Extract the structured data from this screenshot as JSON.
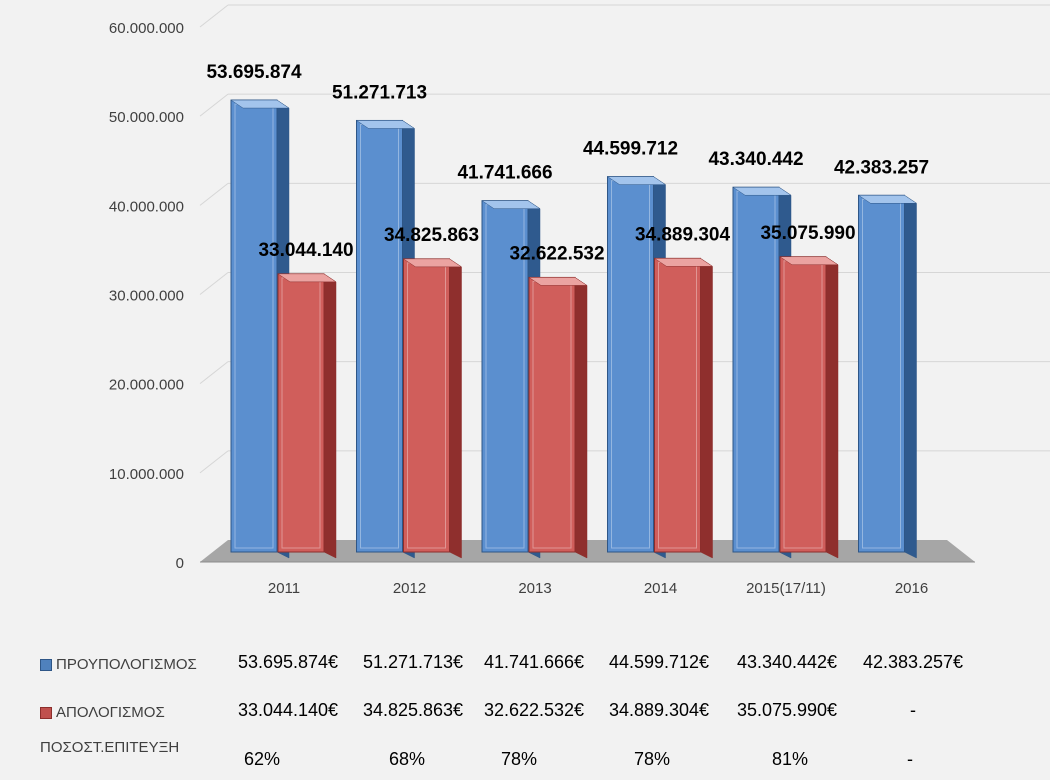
{
  "chart_data": {
    "type": "bar",
    "categories": [
      "2011",
      "2012",
      "2013",
      "2014",
      "2015(17/11)",
      "2016"
    ],
    "series": [
      {
        "name": "ΠΡΟΥΠΟΛΟΓΙΣΜΟΣ",
        "color": "#4f81bd",
        "values": [
          53695874,
          51271713,
          41741666,
          44599712,
          43340442,
          42383257
        ],
        "labels": [
          "53.695.874",
          "51.271.713",
          "41.741.666",
          "44.599.712",
          "43.340.442",
          "42.383.257"
        ]
      },
      {
        "name": "ΑΠΟΛΟΓΙΣΜΟΣ",
        "color": "#c0504d",
        "values": [
          33044140,
          34825863,
          32622532,
          34889304,
          35075990,
          null
        ],
        "labels": [
          "33.044.140",
          "34.825.863",
          "32.622.532",
          "34.889.304",
          "35.075.990",
          null
        ]
      }
    ],
    "yticks": [
      "0",
      "10.000.000",
      "20.000.000",
      "30.000.000",
      "40.000.000",
      "50.000.000",
      "60.000.000"
    ],
    "ylim": [
      0,
      60000000
    ],
    "grid": true,
    "legend_placement": "bottom (data table)",
    "title": "",
    "xlabel": "",
    "ylabel": ""
  },
  "table": {
    "rows": [
      {
        "label": "ΠΡΟΥΠΟΛΟΓΙΣΜΟΣ",
        "cells": [
          "53.695.874€",
          "51.271.713€",
          "41.741.666€",
          "44.599.712€",
          "43.340.442€",
          "42.383.257€"
        ]
      },
      {
        "label": "ΑΠΟΛΟΓΙΣΜΟΣ",
        "cells": [
          "33.044.140€",
          "34.825.863€",
          "32.622.532€",
          "34.889.304€",
          "35.075.990€",
          "-"
        ]
      },
      {
        "label": "ΠΟΣΟΣΤ.ΕΠΙΤΕΥΞΗ",
        "cells": [
          "62%",
          "68%",
          "78%",
          "78%",
          "81%",
          "-"
        ]
      }
    ]
  }
}
